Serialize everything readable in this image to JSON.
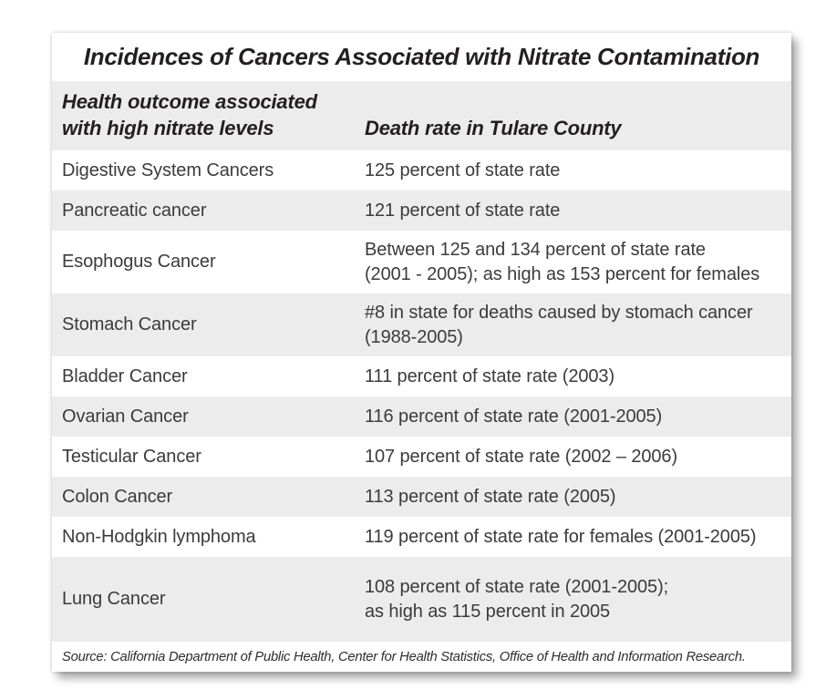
{
  "colors": {
    "row_stripe": "#ececec",
    "card_background": "#ffffff",
    "title_text": "#231f20",
    "body_text": "#3b3b3b"
  },
  "table": {
    "title": "Incidences of Cancers Associated with Nitrate Contamination",
    "header": {
      "col1_line1": "Health outcome associated",
      "col1_line2": "with high nitrate levels",
      "col2": "Death rate in Tulare County"
    },
    "rows": [
      {
        "outcome": "Digestive System Cancers",
        "rate_lines": [
          "125 percent of state rate"
        ]
      },
      {
        "outcome": "Pancreatic cancer",
        "rate_lines": [
          "121 percent of state rate"
        ]
      },
      {
        "outcome": "Esophogus Cancer",
        "rate_lines": [
          "Between 125 and 134 percent of state rate",
          "(2001 - 2005); as high as 153 percent for females"
        ]
      },
      {
        "outcome": "Stomach Cancer",
        "rate_lines": [
          "#8 in state for deaths caused by stomach cancer",
          "(1988-2005)"
        ]
      },
      {
        "outcome": "Bladder Cancer",
        "rate_lines": [
          "111 percent of state rate (2003)"
        ]
      },
      {
        "outcome": "Ovarian Cancer",
        "rate_lines": [
          "116 percent of state rate (2001-2005)"
        ]
      },
      {
        "outcome": "Testicular Cancer",
        "rate_lines": [
          "107 percent of state rate (2002 – 2006)"
        ]
      },
      {
        "outcome": "Colon Cancer",
        "rate_lines": [
          "113 percent of state rate (2005)"
        ]
      },
      {
        "outcome": "Non-Hodgkin lymphoma",
        "rate_lines": [
          "119 percent of state rate for females (2001-2005)"
        ]
      },
      {
        "outcome": "Lung Cancer",
        "rate_lines": [
          "108 percent of state rate (2001-2005);",
          "as high as 115 percent in 2005"
        ]
      }
    ],
    "source": "Source: California Department of Public Health, Center for Health Statistics, Office of Health and Information Research."
  },
  "chart_data": {
    "type": "table",
    "title": "Incidences of Cancers Associated with Nitrate Contamination",
    "columns": [
      "Health outcome associated with high nitrate levels",
      "Death rate in Tulare County"
    ],
    "rows": [
      [
        "Digestive System Cancers",
        "125 percent of state rate"
      ],
      [
        "Pancreatic cancer",
        "121 percent of state rate"
      ],
      [
        "Esophogus Cancer",
        "Between 125 and 134 percent of state rate (2001 - 2005); as high as 153 percent for females"
      ],
      [
        "Stomach Cancer",
        "#8 in state for deaths caused by stomach cancer (1988-2005)"
      ],
      [
        "Bladder Cancer",
        "111 percent of state rate (2003)"
      ],
      [
        "Ovarian Cancer",
        "116 percent of state rate (2001-2005)"
      ],
      [
        "Testicular Cancer",
        "107 percent of state rate (2002 – 2006)"
      ],
      [
        "Colon Cancer",
        "113 percent of state rate (2005)"
      ],
      [
        "Non-Hodgkin lymphoma",
        "119 percent of state rate for females (2001-2005)"
      ],
      [
        "Lung Cancer",
        "108 percent of state rate (2001-2005); as high as 115 percent in 2005"
      ]
    ],
    "source": "Source: California Department of Public Health, Center for Health Statistics, Office of Health and Information Research.",
    "layout": {
      "striped": true,
      "stripe_color": "#ececec",
      "header_style": "bold-italic",
      "grid": false
    }
  }
}
